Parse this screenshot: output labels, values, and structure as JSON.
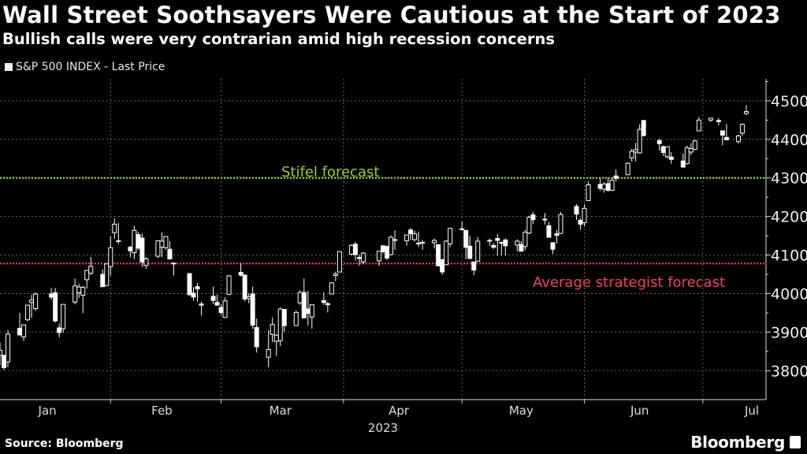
{
  "title": "Wall Street Soothsayers Were Cautious at the Start of 2023",
  "subtitle": "Bullish calls were very contrarian amid high recession concerns",
  "source": "Source: Bloomberg",
  "brand": "Bloomberg",
  "colors": {
    "background": "#000000",
    "candle": "#ffffff",
    "stifel": "#9acd32",
    "average": "#e8455f",
    "grid": "#666666"
  },
  "chart_data": {
    "type": "candlestick",
    "legend": [
      {
        "label": "S&P 500 INDEX - Last Price"
      }
    ],
    "legend_position": "top-left",
    "xlabel": "2023",
    "x_ticks": [
      {
        "label": "Jan",
        "date": "2023-01-16"
      },
      {
        "label": "Feb",
        "date": "2023-02-14"
      },
      {
        "label": "Mar",
        "date": "2023-03-16"
      },
      {
        "label": "Apr",
        "date": "2023-04-15"
      },
      {
        "label": "May",
        "date": "2023-05-16"
      },
      {
        "label": "Jun",
        "date": "2023-06-15"
      },
      {
        "label": "Jul",
        "date": "2023-07-14"
      }
    ],
    "month_boundaries": [
      "2023-02-01",
      "2023-03-01",
      "2023-04-01",
      "2023-05-01",
      "2023-06-01",
      "2023-07-01"
    ],
    "xlim": [
      "2023-01-04",
      "2023-07-17"
    ],
    "ylim": [
      3725,
      4557
    ],
    "y_ticks": [
      3800,
      3900,
      4000,
      4100,
      4200,
      4300,
      4400,
      4500
    ],
    "y_axis_position": "right",
    "grid": true,
    "reference_lines": [
      {
        "label": "Stifel forecast",
        "value": 4300,
        "color": "#9acd32"
      },
      {
        "label": "Average strategist forecast",
        "value": 4078,
        "color": "#e8455f"
      }
    ],
    "columns": [
      "date",
      "open",
      "high",
      "low",
      "close"
    ],
    "ohlc": [
      [
        "2023-01-04",
        3840,
        3873,
        3815,
        3853
      ],
      [
        "2023-01-05",
        3840,
        3840,
        3802,
        3808
      ],
      [
        "2023-01-06",
        3823,
        3906,
        3809,
        3895
      ],
      [
        "2023-01-09",
        3910,
        3950,
        3890,
        3893
      ],
      [
        "2023-01-10",
        3888,
        3920,
        3877,
        3919
      ],
      [
        "2023-01-11",
        3932,
        3970,
        3928,
        3970
      ],
      [
        "2023-01-12",
        3977,
        3997,
        3937,
        3983
      ],
      [
        "2023-01-13",
        3961,
        4003,
        3955,
        3999
      ],
      [
        "2023-01-17",
        3999,
        4015,
        3984,
        3991
      ],
      [
        "2023-01-18",
        4002,
        4015,
        3925,
        3929
      ],
      [
        "2023-01-19",
        3911,
        3922,
        3886,
        3899
      ],
      [
        "2023-01-20",
        3909,
        3973,
        3899,
        3972
      ],
      [
        "2023-01-23",
        3978,
        4039,
        3972,
        4020
      ],
      [
        "2023-01-24",
        4002,
        4025,
        3989,
        4017
      ],
      [
        "2023-01-25",
        3996,
        4020,
        3949,
        4016
      ],
      [
        "2023-01-26",
        4036,
        4061,
        4013,
        4060
      ],
      [
        "2023-01-27",
        4053,
        4095,
        4048,
        4071
      ],
      [
        "2023-01-30",
        4050,
        4063,
        4017,
        4018
      ],
      [
        "2023-01-31",
        4021,
        4077,
        4020,
        4077
      ],
      [
        "2023-02-01",
        4070,
        4149,
        4047,
        4119
      ],
      [
        "2023-02-02",
        4158,
        4195,
        4142,
        4180
      ],
      [
        "2023-02-03",
        4137,
        4183,
        4128,
        4136
      ],
      [
        "2023-02-06",
        4120,
        4124,
        4094,
        4111
      ],
      [
        "2023-02-07",
        4106,
        4176,
        4089,
        4164
      ],
      [
        "2023-02-08",
        4153,
        4160,
        4113,
        4118
      ],
      [
        "2023-02-09",
        4144,
        4156,
        4069,
        4082
      ],
      [
        "2023-02-10",
        4073,
        4095,
        4064,
        4090
      ],
      [
        "2023-02-13",
        4097,
        4138,
        4092,
        4137
      ],
      [
        "2023-02-14",
        4121,
        4159,
        4095,
        4136
      ],
      [
        "2023-02-15",
        4119,
        4149,
        4114,
        4148
      ],
      [
        "2023-02-16",
        4115,
        4136,
        4088,
        4090
      ],
      [
        "2023-02-17",
        4077,
        4081,
        4047,
        4079
      ],
      [
        "2023-02-21",
        4052,
        4052,
        3995,
        3997
      ],
      [
        "2023-02-22",
        4001,
        4017,
        3981,
        3991
      ],
      [
        "2023-02-23",
        4018,
        4028,
        3979,
        4012
      ],
      [
        "2023-02-24",
        3973,
        3979,
        3943,
        3970
      ],
      [
        "2023-02-27",
        3993,
        4018,
        3973,
        3982
      ],
      [
        "2023-02-28",
        3977,
        3997,
        3968,
        3970
      ],
      [
        "2023-03-01",
        3964,
        3972,
        3944,
        3951
      ],
      [
        "2023-03-02",
        3938,
        3990,
        3937,
        3981
      ],
      [
        "2023-03-03",
        3998,
        4048,
        3997,
        4046
      ],
      [
        "2023-03-06",
        4055,
        4079,
        4044,
        4048
      ],
      [
        "2023-03-07",
        4048,
        4050,
        3980,
        3986
      ],
      [
        "2023-03-08",
        3987,
        4001,
        3975,
        3992
      ],
      [
        "2023-03-09",
        3999,
        4018,
        3908,
        3918
      ],
      [
        "2023-03-10",
        3912,
        3935,
        3847,
        3862
      ],
      [
        "2023-03-13",
        3835,
        3905,
        3809,
        3855
      ],
      [
        "2023-03-14",
        3894,
        3938,
        3874,
        3920
      ],
      [
        "2023-03-15",
        3876,
        3894,
        3838,
        3892
      ],
      [
        "2023-03-16",
        3878,
        3964,
        3864,
        3960
      ],
      [
        "2023-03-17",
        3959,
        3959,
        3901,
        3917
      ],
      [
        "2023-03-20",
        3917,
        3956,
        3917,
        3951
      ],
      [
        "2023-03-21",
        3976,
        4009,
        3971,
        4003
      ],
      [
        "2023-03-22",
        4003,
        4039,
        3936,
        3937
      ],
      [
        "2023-03-23",
        3960,
        4007,
        3917,
        3949
      ],
      [
        "2023-03-24",
        3939,
        3972,
        3909,
        3971
      ],
      [
        "2023-03-27",
        3982,
        4003,
        3971,
        3977
      ],
      [
        "2023-03-28",
        3974,
        3979,
        3951,
        3971
      ],
      [
        "2023-03-29",
        3999,
        4030,
        3999,
        4028
      ],
      [
        "2023-03-30",
        4047,
        4057,
        4032,
        4051
      ],
      [
        "2023-03-31",
        4056,
        4110,
        4056,
        4109
      ],
      [
        "2023-04-03",
        4102,
        4128,
        4099,
        4125
      ],
      [
        "2023-04-04",
        4128,
        4134,
        4086,
        4101
      ],
      [
        "2023-04-05",
        4094,
        4100,
        4073,
        4091
      ],
      [
        "2023-04-06",
        4082,
        4108,
        4076,
        4105
      ],
      [
        "2023-04-10",
        4085,
        4110,
        4072,
        4110
      ],
      [
        "2023-04-11",
        4124,
        4125,
        4104,
        4109
      ],
      [
        "2023-04-12",
        4122,
        4125,
        4087,
        4092
      ],
      [
        "2023-04-13",
        4101,
        4151,
        4099,
        4146
      ],
      [
        "2023-04-14",
        4140,
        4164,
        4113,
        4138
      ],
      [
        "2023-04-17",
        4137,
        4152,
        4124,
        4152
      ],
      [
        "2023-04-18",
        4165,
        4170,
        4139,
        4155
      ],
      [
        "2023-04-19",
        4140,
        4163,
        4135,
        4155
      ],
      [
        "2023-04-20",
        4131,
        4161,
        4121,
        4130
      ],
      [
        "2023-04-21",
        4133,
        4139,
        4114,
        4133
      ],
      [
        "2023-04-24",
        4132,
        4143,
        4117,
        4138
      ],
      [
        "2023-04-25",
        4127,
        4127,
        4071,
        4072
      ],
      [
        "2023-04-26",
        4088,
        4090,
        4049,
        4056
      ],
      [
        "2023-04-27",
        4075,
        4139,
        4075,
        4136
      ],
      [
        "2023-04-28",
        4129,
        4171,
        4121,
        4169
      ],
      [
        "2023-05-01",
        4166,
        4187,
        4164,
        4168
      ],
      [
        "2023-05-02",
        4164,
        4164,
        4089,
        4120
      ],
      [
        "2023-05-03",
        4123,
        4149,
        4090,
        4091
      ],
      [
        "2023-05-04",
        4082,
        4082,
        4048,
        4061
      ],
      [
        "2023-05-05",
        4084,
        4147,
        4083,
        4136
      ],
      [
        "2023-05-08",
        4136,
        4143,
        4124,
        4138
      ],
      [
        "2023-05-09",
        4125,
        4131,
        4116,
        4120
      ],
      [
        "2023-05-10",
        4143,
        4155,
        4098,
        4138
      ],
      [
        "2023-05-11",
        4133,
        4133,
        4099,
        4131
      ],
      [
        "2023-05-12",
        4139,
        4143,
        4099,
        4124
      ],
      [
        "2023-05-15",
        4126,
        4141,
        4110,
        4136
      ],
      [
        "2023-05-16",
        4127,
        4136,
        4109,
        4110
      ],
      [
        "2023-05-17",
        4122,
        4165,
        4113,
        4159
      ],
      [
        "2023-05-18",
        4157,
        4202,
        4154,
        4198
      ],
      [
        "2023-05-19",
        4204,
        4212,
        4180,
        4192
      ],
      [
        "2023-05-22",
        4191,
        4209,
        4179,
        4193
      ],
      [
        "2023-05-23",
        4176,
        4186,
        4146,
        4146
      ],
      [
        "2023-05-24",
        4132,
        4133,
        4103,
        4115
      ],
      [
        "2023-05-25",
        4155,
        4165,
        4130,
        4151
      ],
      [
        "2023-05-26",
        4156,
        4212,
        4155,
        4205
      ],
      [
        "2023-05-30",
        4226,
        4232,
        4192,
        4206
      ],
      [
        "2023-05-31",
        4190,
        4195,
        4166,
        4180
      ],
      [
        "2023-06-01",
        4184,
        4232,
        4174,
        4221
      ],
      [
        "2023-06-02",
        4241,
        4291,
        4241,
        4282
      ],
      [
        "2023-06-05",
        4283,
        4299,
        4267,
        4273
      ],
      [
        "2023-06-06",
        4271,
        4289,
        4262,
        4284
      ],
      [
        "2023-06-07",
        4285,
        4299,
        4264,
        4268
      ],
      [
        "2023-06-08",
        4268,
        4299,
        4266,
        4294
      ],
      [
        "2023-06-09",
        4305,
        4322,
        4291,
        4299
      ],
      [
        "2023-06-12",
        4308,
        4340,
        4308,
        4338
      ],
      [
        "2023-06-13",
        4352,
        4375,
        4342,
        4369
      ],
      [
        "2023-06-14",
        4367,
        4391,
        4343,
        4373
      ],
      [
        "2023-06-15",
        4365,
        4439,
        4363,
        4426
      ],
      [
        "2023-06-16",
        4449,
        4449,
        4407,
        4410
      ],
      [
        "2023-06-20",
        4397,
        4401,
        4371,
        4389
      ],
      [
        "2023-06-21",
        4381,
        4384,
        4357,
        4366
      ],
      [
        "2023-06-22",
        4355,
        4382,
        4350,
        4381
      ],
      [
        "2023-06-23",
        4354,
        4367,
        4337,
        4348
      ],
      [
        "2023-06-26",
        4344,
        4363,
        4328,
        4328
      ],
      [
        "2023-06-27",
        4337,
        4384,
        4335,
        4378
      ],
      [
        "2023-06-28",
        4367,
        4390,
        4360,
        4376
      ],
      [
        "2023-06-29",
        4374,
        4399,
        4372,
        4396
      ],
      [
        "2023-06-30",
        4422,
        4458,
        4422,
        4450
      ],
      [
        "2023-07-03",
        4450,
        4456,
        4445,
        4455
      ],
      [
        "2023-07-05",
        4449,
        4455,
        4436,
        4446
      ],
      [
        "2023-07-06",
        4422,
        4422,
        4385,
        4411
      ],
      [
        "2023-07-07",
        4405,
        4440,
        4397,
        4399
      ],
      [
        "2023-07-10",
        4394,
        4412,
        4389,
        4409
      ],
      [
        "2023-07-11",
        4416,
        4441,
        4409,
        4439
      ],
      [
        "2023-07-12",
        4467,
        4489,
        4463,
        4472
      ]
    ]
  }
}
